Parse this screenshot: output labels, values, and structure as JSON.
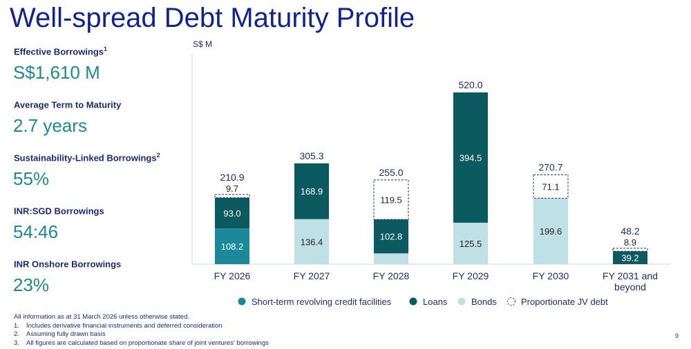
{
  "title": "Well-spread Debt Maturity Profile",
  "kpis": [
    {
      "label": "Effective Borrowings",
      "sup": "1",
      "value": "S$1,610 M"
    },
    {
      "label": "Average Term to Maturity",
      "sup": "",
      "value": "2.7 years"
    },
    {
      "label": "Sustainability-Linked Borrowings",
      "sup": "2",
      "value": "55%"
    },
    {
      "label": "INR:SGD Borrowings",
      "sup": "",
      "value": "54:46"
    },
    {
      "label": "INR Onshore Borrowings",
      "sup": "",
      "value": "23%"
    }
  ],
  "notes": {
    "intro": "All information as at 31 March 2026 unless otherwise stated.",
    "items": [
      {
        "num": "1.",
        "text": "Includes derivative financial instruments and deferred consideration"
      },
      {
        "num": "2.",
        "text": "Assuming fully drawn basis"
      },
      {
        "num": "3.",
        "text": "All figures are calculated based on proportionate share of joint ventures' borrowings"
      }
    ]
  },
  "page_number": "9",
  "chart_data": {
    "type": "bar",
    "stacked": true,
    "ylabel": "S$ M",
    "ylim": [
      0,
      520
    ],
    "grid": false,
    "legend_placement": "bottom",
    "categories": [
      "FY 2026",
      "FY 2027",
      "FY 2028",
      "FY 2029",
      "FY 2030",
      "FY 2031 and beyond"
    ],
    "series": [
      {
        "name": "Short-term revolving credit facilities",
        "color": "#1a8a9a",
        "values": [
          108.2,
          0,
          0,
          0,
          0,
          0
        ]
      },
      {
        "name": "Bonds",
        "color": "#bfe1e6",
        "values": [
          0,
          136.4,
          32.7,
          125.5,
          199.6,
          0
        ]
      },
      {
        "name": "Loans",
        "color": "#0b5a60",
        "values": [
          93.0,
          168.9,
          102.8,
          394.5,
          0,
          39.2
        ]
      },
      {
        "name": "Proportionate JV debt",
        "color": "#ffffff",
        "dashed": true,
        "values": [
          9.7,
          0,
          119.5,
          0,
          71.1,
          8.9
        ]
      }
    ],
    "totals": [
      "210.9",
      "305.3",
      "255.0",
      "520.0",
      "270.7",
      "48.2"
    ],
    "legend_order": [
      "Short-term revolving credit facilities",
      "Loans",
      "Bonds",
      "Proportionate JV debt"
    ]
  }
}
